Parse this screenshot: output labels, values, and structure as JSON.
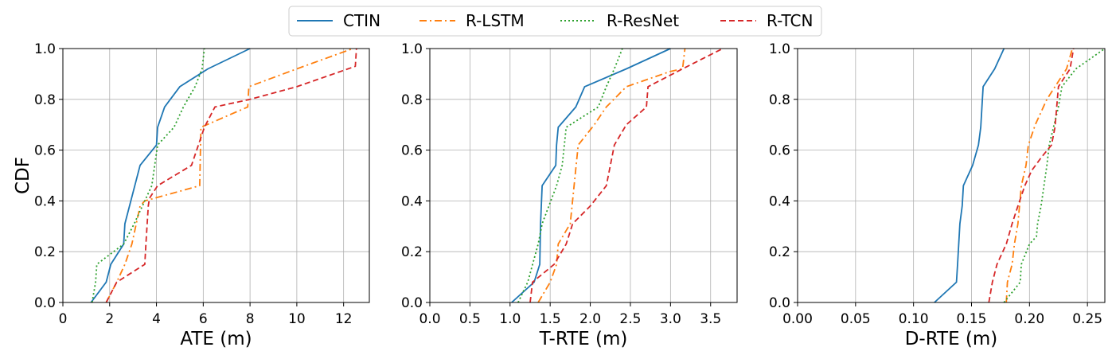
{
  "legend": {
    "placement": "top-center",
    "entries": [
      {
        "name": "CTIN",
        "color": "#1f77b4",
        "dash": "solid"
      },
      {
        "name": "R-LSTM",
        "color": "#ff7f0e",
        "dash": "dashdot"
      },
      {
        "name": "R-ResNet",
        "color": "#2ca02c",
        "dash": "dotted"
      },
      {
        "name": "R-TCN",
        "color": "#d62728",
        "dash": "dashed"
      }
    ]
  },
  "chart_data": [
    {
      "type": "line",
      "xlabel": "ATE (m)",
      "ylabel": "CDF",
      "xlim": [
        0,
        13.1
      ],
      "ylim": [
        0,
        1
      ],
      "xticks": [
        0,
        2,
        4,
        6,
        8,
        10,
        12
      ],
      "xtick_labels": [
        "0",
        "2",
        "4",
        "6",
        "8",
        "10",
        "12"
      ],
      "yticks": [
        0,
        0.2,
        0.4,
        0.6,
        0.8,
        1.0
      ],
      "ytick_labels": [
        "0.0",
        "0.2",
        "0.4",
        "0.6",
        "0.8",
        "1.0"
      ],
      "grid": true,
      "series": [
        {
          "name": "CTIN",
          "points": [
            [
              1.2,
              0
            ],
            [
              1.85,
              0.08
            ],
            [
              2.05,
              0.15
            ],
            [
              2.6,
              0.23
            ],
            [
              2.65,
              0.31
            ],
            [
              3.3,
              0.54
            ],
            [
              4.0,
              0.62
            ],
            [
              4.05,
              0.69
            ],
            [
              4.35,
              0.77
            ],
            [
              5.0,
              0.85
            ],
            [
              6.2,
              0.92
            ],
            [
              8.0,
              1.0
            ]
          ]
        },
        {
          "name": "R-LSTM",
          "points": [
            [
              1.85,
              0
            ],
            [
              2.3,
              0.08
            ],
            [
              2.65,
              0.15
            ],
            [
              2.95,
              0.23
            ],
            [
              3.3,
              0.38
            ],
            [
              3.5,
              0.4
            ],
            [
              5.85,
              0.46
            ],
            [
              5.9,
              0.69
            ],
            [
              7.9,
              0.77
            ],
            [
              7.95,
              0.85
            ],
            [
              10.0,
              0.92
            ],
            [
              12.4,
              1.0
            ]
          ]
        },
        {
          "name": "R-ResNet",
          "points": [
            [
              1.25,
              0
            ],
            [
              1.4,
              0.08
            ],
            [
              1.45,
              0.15
            ],
            [
              2.6,
              0.23
            ],
            [
              3.05,
              0.31
            ],
            [
              3.8,
              0.46
            ],
            [
              4.05,
              0.62
            ],
            [
              4.75,
              0.69
            ],
            [
              5.15,
              0.77
            ],
            [
              5.65,
              0.85
            ],
            [
              5.95,
              0.92
            ],
            [
              6.05,
              1.0
            ]
          ]
        },
        {
          "name": "R-TCN",
          "points": [
            [
              1.85,
              0
            ],
            [
              2.3,
              0.08
            ],
            [
              3.5,
              0.15
            ],
            [
              3.55,
              0.23
            ],
            [
              3.65,
              0.38
            ],
            [
              3.7,
              0.41
            ],
            [
              4.05,
              0.46
            ],
            [
              5.5,
              0.54
            ],
            [
              6.05,
              0.69
            ],
            [
              6.5,
              0.77
            ],
            [
              8.0,
              0.8
            ],
            [
              10.0,
              0.85
            ],
            [
              12.5,
              0.93
            ],
            [
              12.55,
              1.0
            ]
          ]
        }
      ]
    },
    {
      "type": "line",
      "xlabel": "T-RTE (m)",
      "ylabel": "",
      "xlim": [
        0,
        3.83
      ],
      "ylim": [
        0,
        1
      ],
      "xticks": [
        0,
        0.5,
        1.0,
        1.5,
        2.0,
        2.5,
        3.0,
        3.5
      ],
      "xtick_labels": [
        "0.0",
        "0.5",
        "1.0",
        "1.5",
        "2.0",
        "2.5",
        "3.0",
        "3.5"
      ],
      "yticks": [
        0,
        0.2,
        0.4,
        0.6,
        0.8,
        1.0
      ],
      "ytick_labels": [
        "0.0",
        "0.2",
        "0.4",
        "0.6",
        "0.8",
        "1.0"
      ],
      "grid": true,
      "series": [
        {
          "name": "CTIN",
          "points": [
            [
              1.02,
              0
            ],
            [
              1.3,
              0.08
            ],
            [
              1.37,
              0.15
            ],
            [
              1.38,
              0.31
            ],
            [
              1.4,
              0.46
            ],
            [
              1.57,
              0.54
            ],
            [
              1.58,
              0.62
            ],
            [
              1.6,
              0.69
            ],
            [
              1.82,
              0.77
            ],
            [
              1.93,
              0.85
            ],
            [
              2.45,
              0.92
            ],
            [
              3.0,
              1.0
            ]
          ]
        },
        {
          "name": "R-LSTM",
          "points": [
            [
              1.35,
              0
            ],
            [
              1.5,
              0.08
            ],
            [
              1.58,
              0.15
            ],
            [
              1.6,
              0.23
            ],
            [
              1.75,
              0.31
            ],
            [
              1.85,
              0.62
            ],
            [
              2.05,
              0.7
            ],
            [
              2.2,
              0.77
            ],
            [
              2.45,
              0.85
            ],
            [
              3.0,
              0.91
            ],
            [
              3.15,
              0.92
            ],
            [
              3.18,
              1.0
            ]
          ]
        },
        {
          "name": "R-ResNet",
          "points": [
            [
              1.1,
              0
            ],
            [
              1.22,
              0.08
            ],
            [
              1.35,
              0.23
            ],
            [
              1.4,
              0.31
            ],
            [
              1.58,
              0.46
            ],
            [
              1.65,
              0.54
            ],
            [
              1.7,
              0.69
            ],
            [
              2.1,
              0.77
            ],
            [
              2.2,
              0.85
            ],
            [
              2.3,
              0.92
            ],
            [
              2.4,
              1.0
            ]
          ]
        },
        {
          "name": "R-TCN",
          "points": [
            [
              1.25,
              0
            ],
            [
              1.28,
              0.08
            ],
            [
              1.55,
              0.15
            ],
            [
              1.7,
              0.23
            ],
            [
              1.78,
              0.31
            ],
            [
              2.0,
              0.38
            ],
            [
              2.2,
              0.46
            ],
            [
              2.25,
              0.54
            ],
            [
              2.3,
              0.62
            ],
            [
              2.45,
              0.7
            ],
            [
              2.7,
              0.77
            ],
            [
              2.72,
              0.85
            ],
            [
              3.15,
              0.92
            ],
            [
              3.65,
              1.0
            ]
          ]
        }
      ]
    },
    {
      "type": "line",
      "xlabel": "D-RTE (m)",
      "ylabel": "",
      "xlim": [
        0,
        0.265
      ],
      "ylim": [
        0,
        1
      ],
      "xticks": [
        0,
        0.05,
        0.1,
        0.15,
        0.2,
        0.25
      ],
      "xtick_labels": [
        "0.00",
        "0.05",
        "0.10",
        "0.15",
        "0.20",
        "0.25"
      ],
      "yticks": [
        0,
        0.2,
        0.4,
        0.6,
        0.8,
        1.0
      ],
      "ytick_labels": [
        "0.0",
        "0.2",
        "0.4",
        "0.6",
        "0.8",
        "1.0"
      ],
      "grid": true,
      "series": [
        {
          "name": "CTIN",
          "points": [
            [
              0.118,
              0
            ],
            [
              0.137,
              0.08
            ],
            [
              0.138,
              0.15
            ],
            [
              0.14,
              0.31
            ],
            [
              0.142,
              0.38
            ],
            [
              0.143,
              0.46
            ],
            [
              0.151,
              0.54
            ],
            [
              0.156,
              0.62
            ],
            [
              0.158,
              0.69
            ],
            [
              0.159,
              0.77
            ],
            [
              0.16,
              0.85
            ],
            [
              0.17,
              0.92
            ],
            [
              0.178,
              1.0
            ]
          ]
        },
        {
          "name": "R-LSTM",
          "points": [
            [
              0.18,
              0
            ],
            [
              0.181,
              0.08
            ],
            [
              0.185,
              0.15
            ],
            [
              0.187,
              0.23
            ],
            [
              0.19,
              0.31
            ],
            [
              0.193,
              0.46
            ],
            [
              0.197,
              0.54
            ],
            [
              0.199,
              0.62
            ],
            [
              0.205,
              0.7
            ],
            [
              0.215,
              0.8
            ],
            [
              0.222,
              0.85
            ],
            [
              0.232,
              0.92
            ],
            [
              0.237,
              1.0
            ]
          ]
        },
        {
          "name": "R-ResNet",
          "points": [
            [
              0.178,
              0
            ],
            [
              0.192,
              0.08
            ],
            [
              0.193,
              0.15
            ],
            [
              0.2,
              0.23
            ],
            [
              0.206,
              0.26
            ],
            [
              0.207,
              0.31
            ],
            [
              0.21,
              0.38
            ],
            [
              0.215,
              0.54
            ],
            [
              0.217,
              0.62
            ],
            [
              0.225,
              0.77
            ],
            [
              0.228,
              0.85
            ],
            [
              0.24,
              0.92
            ],
            [
              0.265,
              1.0
            ]
          ]
        },
        {
          "name": "R-TCN",
          "points": [
            [
              0.165,
              0
            ],
            [
              0.168,
              0.08
            ],
            [
              0.172,
              0.15
            ],
            [
              0.18,
              0.23
            ],
            [
              0.185,
              0.31
            ],
            [
              0.19,
              0.38
            ],
            [
              0.196,
              0.46
            ],
            [
              0.202,
              0.52
            ],
            [
              0.21,
              0.57
            ],
            [
              0.219,
              0.62
            ],
            [
              0.222,
              0.69
            ],
            [
              0.225,
              0.85
            ],
            [
              0.235,
              0.92
            ],
            [
              0.238,
              1.0
            ]
          ]
        }
      ]
    }
  ]
}
